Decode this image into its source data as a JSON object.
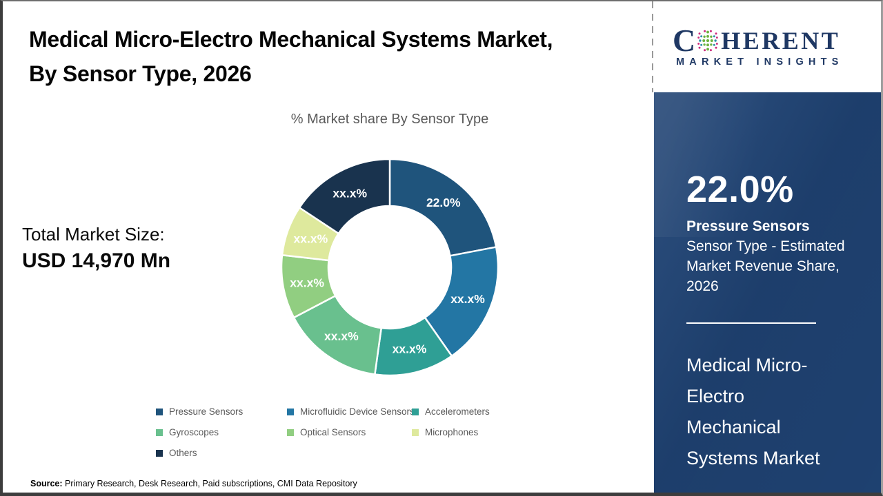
{
  "page": {
    "title": "Medical Micro-Electro Mechanical Systems Market, By Sensor Type, 2026",
    "subtitle": "% Market share By Sensor Type",
    "total_market": {
      "label": "Total Market Size:",
      "value": "USD 14,970 Mn"
    },
    "source_label": "Source:",
    "source_text": "Primary Research, Desk Research, Paid subscriptions, CMI Data Repository"
  },
  "chart_data": {
    "type": "pie",
    "subtype": "donut",
    "title": "% Market share By Sensor Type",
    "legend_position": "bottom",
    "categories": [
      "Pressure Sensors",
      "Microfluidic Device Sensors",
      "Accelerometers",
      "Gyroscopes",
      "Optical Sensors",
      "Microphones",
      "Others"
    ],
    "values": [
      22.0,
      18.3,
      11.9,
      15.1,
      9.5,
      7.5,
      15.7
    ],
    "slice_labels": [
      "22.0%",
      "xx.x%",
      "xx.x%",
      "xx.x%",
      "xx.x%",
      "xx.x%",
      "xx.x%"
    ],
    "colors": [
      "#1f547c",
      "#2376a4",
      "#2f9f95",
      "#69c08e",
      "#91ce81",
      "#dee99d",
      "#19334e"
    ]
  },
  "sidebar": {
    "logo": {
      "c": "C",
      "rest": "HERENT",
      "tagline": "MARKET INSIGHTS"
    },
    "highlight": {
      "value": "22.0%",
      "bold": "Pressure Sensors",
      "rest": " Sensor Type - Estimated Market Revenue Share, 2026"
    },
    "market_name": "Medical Micro-Electro Mechanical Systems Market"
  }
}
